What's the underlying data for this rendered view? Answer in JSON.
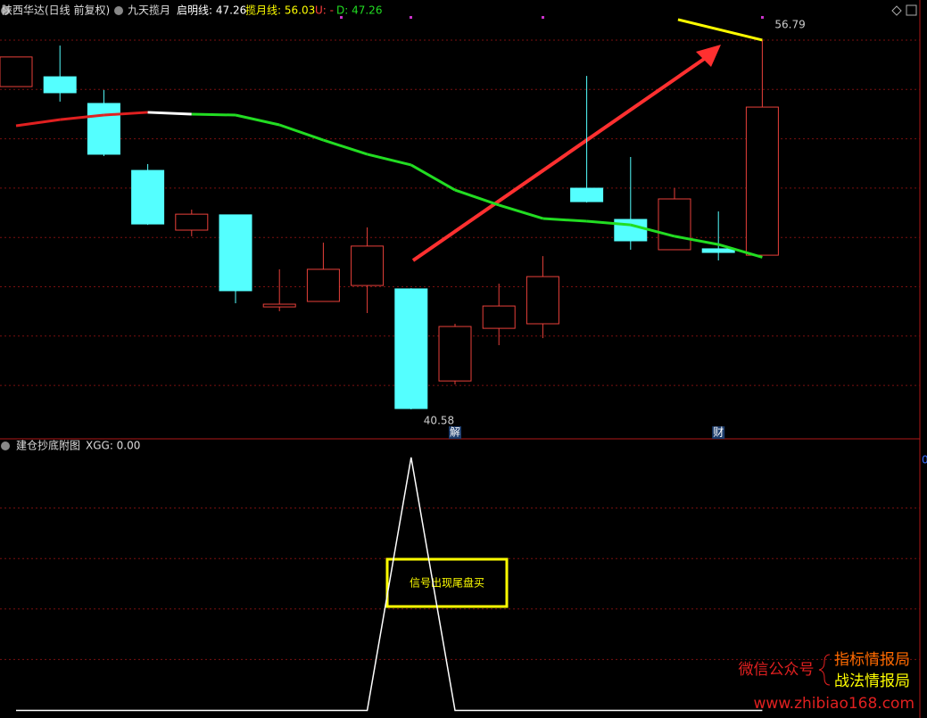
{
  "chart_data": [
    {
      "type": "candlestick",
      "title": "陕西华达(日线 前复权)",
      "indicator": "九天揽月",
      "readouts": [
        "启明线: 47.26",
        "揽月线: 56.03",
        "U: -",
        "D: 47.26"
      ],
      "ylim": [
        39.29,
        58.55
      ],
      "up_color": "#e8403a",
      "down_color": "#54ffff",
      "candles": [
        {
          "open": 54.75,
          "high": 56.05,
          "low": 54.75,
          "close": 56.05
        },
        {
          "open": 55.18,
          "high": 56.55,
          "low": 54.09,
          "close": 54.48
        },
        {
          "open": 54.01,
          "high": 54.6,
          "low": 51.7,
          "close": 51.78
        },
        {
          "open": 51.07,
          "high": 51.35,
          "low": 48.68,
          "close": 48.72
        },
        {
          "open": 48.45,
          "high": 49.35,
          "low": 48.18,
          "close": 49.15
        },
        {
          "open": 49.12,
          "high": 49.12,
          "low": 45.24,
          "close": 45.79
        },
        {
          "open": 45.08,
          "high": 46.73,
          "low": 44.89,
          "close": 45.2
        },
        {
          "open": 45.32,
          "high": 47.9,
          "low": 45.32,
          "close": 46.73
        },
        {
          "open": 46.02,
          "high": 48.57,
          "low": 44.81,
          "close": 47.75
        },
        {
          "open": 45.87,
          "high": 45.9,
          "low": 40.58,
          "close": 40.62
        },
        {
          "open": 41.83,
          "high": 44.34,
          "low": 41.68,
          "close": 44.22
        },
        {
          "open": 44.14,
          "high": 46.1,
          "low": 43.4,
          "close": 45.12
        },
        {
          "open": 44.34,
          "high": 47.31,
          "low": 43.71,
          "close": 46.41
        },
        {
          "open": 50.29,
          "high": 55.22,
          "low": 49.66,
          "close": 49.7
        },
        {
          "open": 48.92,
          "high": 51.66,
          "low": 47.59,
          "close": 47.98
        },
        {
          "open": 47.59,
          "high": 50.29,
          "low": 47.59,
          "close": 49.82
        },
        {
          "open": 47.63,
          "high": 49.27,
          "low": 47.12,
          "close": 47.47
        },
        {
          "open": 47.35,
          "high": 56.79,
          "low": 47.35,
          "close": 53.85
        }
      ],
      "ma": {
        "values": [
          53.03,
          53.3,
          53.5,
          53.62,
          53.54,
          53.5,
          53.07,
          52.4,
          51.78,
          51.31,
          50.21,
          49.55,
          48.96,
          48.84,
          48.68,
          48.18,
          47.82,
          47.26
        ],
        "segment_colors": [
          "#e02020",
          "#e02020",
          "#e02020",
          "#ffffff",
          "#22dd22",
          "#22dd22",
          "#22dd22",
          "#22dd22",
          "#22dd22",
          "#22dd22",
          "#22dd22",
          "#22dd22",
          "#22dd22",
          "#22dd22",
          "#22dd22",
          "#22dd22",
          "#22dd22"
        ]
      },
      "upper_line": {
        "x": [
          15.08,
          17
        ],
        "values": [
          57.69,
          56.79
        ],
        "color": "#ffff00"
      },
      "markers": [
        "解",
        "财"
      ]
    },
    {
      "type": "line",
      "title": "建仓抄底附图",
      "readout": "XGG: 0.00",
      "ylim": [
        -0.03,
        1.07
      ],
      "values": [
        0,
        0,
        0,
        0,
        0,
        0,
        0,
        0,
        0,
        1,
        0,
        0,
        0,
        0,
        0,
        0,
        0,
        0
      ],
      "color": "#ffffff",
      "annotation": "信号出现尾盘买",
      "axis_label": "0"
    }
  ],
  "watermark": {
    "left": "微信公众号",
    "right": [
      "指标情报局",
      "战法情报局"
    ],
    "url": "www.zhibiao168.com"
  }
}
